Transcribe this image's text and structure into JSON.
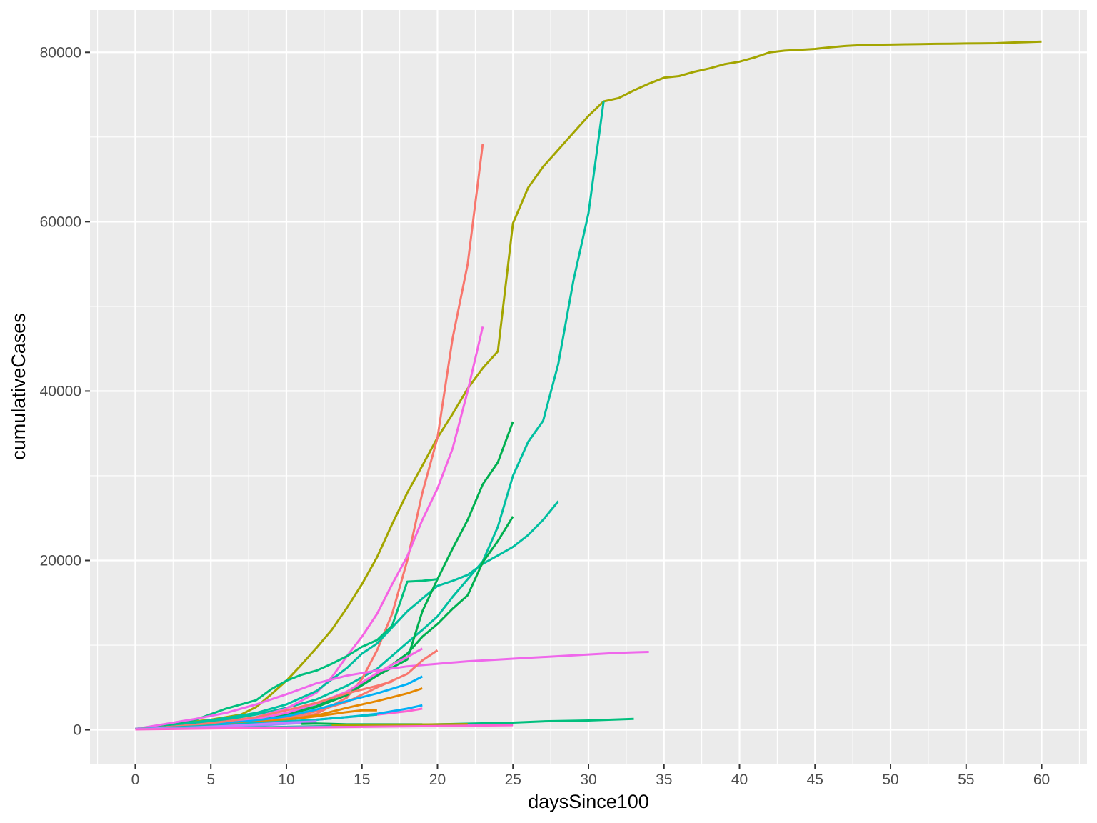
{
  "chart_data": {
    "type": "line",
    "xlabel": "daysSince100",
    "ylabel": "cumulativeCases",
    "xlim": [
      -3,
      63
    ],
    "ylim": [
      -4000,
      85000
    ],
    "x_ticks": [
      0,
      5,
      10,
      15,
      20,
      25,
      30,
      35,
      40,
      45,
      50,
      55,
      60
    ],
    "x_tick_labels": [
      "0",
      "5",
      "10",
      "15",
      "20",
      "25",
      "30",
      "35",
      "40",
      "45",
      "50",
      "55",
      "60"
    ],
    "y_ticks": [
      0,
      20000,
      40000,
      60000,
      80000
    ],
    "y_tick_labels": [
      "0",
      "20000",
      "40000",
      "60000",
      "80000"
    ],
    "grid": true,
    "legend": "none",
    "colors": {
      "panel": "#ebebeb",
      "grid": "#ffffff",
      "tick": "#333333"
    },
    "series": [
      {
        "color": "#a3a500",
        "x": [
          0,
          1,
          2,
          3,
          4,
          5,
          6,
          7,
          8,
          9,
          10,
          11,
          12,
          13,
          14,
          15,
          16,
          17,
          18,
          19,
          20,
          21,
          22,
          23,
          24,
          25,
          26,
          27,
          28,
          29,
          30,
          31,
          32,
          33,
          34,
          35,
          36,
          37,
          38,
          39,
          40,
          41,
          42,
          43,
          44,
          45,
          46,
          47,
          48,
          49,
          50,
          51,
          52,
          53,
          54,
          55,
          56,
          57,
          58,
          59,
          60
        ],
        "y": [
          100,
          300,
          550,
          800,
          1000,
          1200,
          1500,
          1800,
          2700,
          4200,
          5800,
          7700,
          9700,
          11800,
          14400,
          17200,
          20400,
          24300,
          28000,
          31200,
          34500,
          37300,
          40300,
          42700,
          44700,
          59800,
          64000,
          66500,
          68500,
          70500,
          72500,
          74200,
          74600,
          75500,
          76300,
          77000,
          77200,
          77700,
          78100,
          78600,
          78900,
          79400,
          80000,
          80200,
          80300,
          80400,
          80600,
          80750,
          80850,
          80900,
          80920,
          80950,
          80980,
          81000,
          81020,
          81040,
          81060,
          81080,
          81150,
          81200,
          81260
        ]
      },
      {
        "color": "#00bfa0",
        "x": [
          0,
          2,
          4,
          6,
          8,
          10,
          12,
          14,
          16,
          18,
          19,
          20,
          21,
          22,
          23,
          24,
          25,
          26,
          27,
          28,
          29,
          30,
          31
        ],
        "y": [
          100,
          400,
          700,
          1200,
          1800,
          2600,
          3600,
          5200,
          7200,
          10300,
          11800,
          13400,
          15700,
          17800,
          19900,
          24000,
          30000,
          34000,
          36500,
          43200,
          53000,
          61000,
          74200
        ]
      },
      {
        "color": "#f8766d",
        "x": [
          0,
          2,
          4,
          6,
          8,
          10,
          12,
          14,
          15,
          16,
          17,
          18,
          19,
          20,
          21,
          22,
          23
        ],
        "y": [
          100,
          250,
          400,
          600,
          800,
          1200,
          1900,
          3800,
          6000,
          9400,
          13700,
          20000,
          28000,
          34500,
          46200,
          55000,
          69200
        ]
      },
      {
        "color": "#f564e3",
        "x": [
          0,
          2,
          4,
          6,
          8,
          10,
          12,
          13,
          14,
          15,
          16,
          17,
          18,
          19,
          20,
          21,
          22,
          23
        ],
        "y": [
          100,
          300,
          600,
          900,
          1500,
          2500,
          4400,
          6200,
          8700,
          11000,
          13700,
          17200,
          20500,
          24800,
          28500,
          33200,
          40000,
          47600
        ]
      },
      {
        "color": "#00bfa0",
        "x": [
          0,
          2,
          4,
          6,
          8,
          10,
          12,
          14,
          15,
          16,
          17,
          18,
          19,
          20,
          21,
          22,
          23,
          24,
          25,
          26,
          27,
          28
        ],
        "y": [
          100,
          500,
          900,
          1400,
          2000,
          3000,
          4600,
          7300,
          9000,
          10200,
          12100,
          14000,
          15500,
          17000,
          17600,
          18300,
          19600,
          20600,
          21600,
          23000,
          24800,
          27000
        ]
      },
      {
        "color": "#00b050",
        "x": [
          0,
          2,
          4,
          6,
          8,
          10,
          12,
          14,
          16,
          18,
          19,
          20,
          21,
          22,
          23,
          24,
          25
        ],
        "y": [
          100,
          300,
          600,
          900,
          1300,
          1900,
          2800,
          4500,
          6400,
          8300,
          14000,
          17800,
          21400,
          24800,
          29000,
          31600,
          36400
        ]
      },
      {
        "color": "#00b050",
        "x": [
          0,
          2,
          4,
          6,
          8,
          10,
          12,
          14,
          16,
          18,
          19,
          20,
          21,
          22,
          23,
          24,
          25
        ],
        "y": [
          100,
          300,
          500,
          800,
          1200,
          1800,
          2700,
          4100,
          6400,
          9000,
          11000,
          12500,
          14300,
          15900,
          19800,
          22300,
          25200
        ]
      },
      {
        "color": "#00bf7d",
        "x": [
          0,
          2,
          4,
          6,
          8,
          9,
          10,
          11,
          12,
          13,
          14,
          15,
          16,
          17,
          18,
          19,
          20
        ],
        "y": [
          100,
          500,
          1200,
          2500,
          3500,
          4800,
          5800,
          6500,
          7000,
          7800,
          8700,
          9800,
          10600,
          12300,
          17500,
          17600,
          17800
        ]
      },
      {
        "color": "#ef67eb",
        "x": [
          0,
          2,
          4,
          6,
          8,
          10,
          12,
          14,
          16,
          18,
          20,
          22,
          24,
          26,
          28,
          30,
          32,
          34
        ],
        "y": [
          100,
          700,
          1300,
          2000,
          3000,
          4200,
          5500,
          6400,
          7000,
          7500,
          7800,
          8100,
          8300,
          8500,
          8700,
          8900,
          9100,
          9200
        ]
      },
      {
        "color": "#f564e3",
        "x": [
          0,
          2,
          4,
          6,
          8,
          10,
          12,
          14,
          16,
          17,
          18,
          19
        ],
        "y": [
          100,
          300,
          600,
          900,
          1300,
          2000,
          3100,
          4500,
          6700,
          7700,
          8600,
          9600
        ]
      },
      {
        "color": "#f8766d",
        "x": [
          0,
          2,
          4,
          6,
          8,
          10,
          12,
          14,
          16,
          18,
          19,
          20
        ],
        "y": [
          100,
          300,
          500,
          700,
          1000,
          1400,
          2200,
          3300,
          5000,
          6600,
          8200,
          9400
        ]
      },
      {
        "color": "#00b0f6",
        "x": [
          0,
          2,
          4,
          6,
          8,
          10,
          12,
          14,
          16,
          18,
          19
        ],
        "y": [
          100,
          300,
          500,
          800,
          1100,
          1600,
          2400,
          3400,
          4300,
          5400,
          6300
        ]
      },
      {
        "color": "#e58700",
        "x": [
          0,
          2,
          4,
          6,
          8,
          10,
          12,
          14,
          16,
          18,
          19
        ],
        "y": [
          100,
          200,
          400,
          600,
          900,
          1200,
          1700,
          2600,
          3400,
          4300,
          4900
        ]
      },
      {
        "color": "#fd61d1",
        "x": [
          0,
          2,
          4,
          6,
          8,
          10,
          12,
          14,
          16,
          18,
          19
        ],
        "y": [
          100,
          200,
          300,
          500,
          700,
          900,
          1200,
          1500,
          1800,
          2200,
          2500
        ]
      },
      {
        "color": "#00b0f6",
        "x": [
          0,
          2,
          4,
          6,
          8,
          10,
          12,
          14,
          16,
          18,
          19
        ],
        "y": [
          100,
          200,
          300,
          500,
          700,
          900,
          1200,
          1500,
          1900,
          2500,
          2900
        ]
      },
      {
        "color": "#e58700",
        "x": [
          0,
          2,
          4,
          6,
          8,
          10,
          12,
          14,
          15,
          16
        ],
        "y": [
          100,
          250,
          400,
          600,
          900,
          1200,
          1600,
          2100,
          2300,
          2300
        ]
      },
      {
        "color": "#f8766d",
        "x": [
          0,
          2,
          4,
          6,
          8,
          10,
          12,
          14,
          16,
          17
        ],
        "y": [
          100,
          300,
          600,
          1000,
          1500,
          2300,
          3200,
          4300,
          5200,
          5700
        ]
      },
      {
        "color": "#00bfc4",
        "x": [
          0,
          2,
          4,
          6,
          8,
          10,
          12,
          14,
          16
        ],
        "y": [
          100,
          250,
          400,
          600,
          800,
          1000,
          1200,
          1500,
          1800
        ]
      },
      {
        "color": "#9590ff",
        "x": [
          0,
          2,
          4,
          6,
          8,
          10,
          12
        ],
        "y": [
          100,
          150,
          250,
          350,
          500,
          700,
          900
        ]
      },
      {
        "color": "#c77cff",
        "x": [
          0,
          2,
          4,
          6,
          8,
          10,
          12
        ],
        "y": [
          100,
          200,
          300,
          450,
          650,
          850,
          1000
        ]
      },
      {
        "color": "#00bf7d",
        "x": [
          0,
          5,
          10,
          15,
          20,
          25,
          27,
          30,
          33
        ],
        "y": [
          100,
          200,
          350,
          500,
          650,
          850,
          1000,
          1100,
          1300
        ]
      },
      {
        "color": "#00b050",
        "x": [
          11,
          12,
          13,
          14,
          15,
          16,
          17,
          18,
          19
        ],
        "y": [
          700,
          750,
          700,
          650,
          650,
          650,
          650,
          650,
          650
        ]
      },
      {
        "color": "#9590ff",
        "x": [
          0,
          5,
          10,
          15,
          20,
          25
        ],
        "y": [
          100,
          200,
          300,
          400,
          500,
          600
        ]
      },
      {
        "color": "#a3a500",
        "x": [
          13,
          15,
          18,
          20,
          22
        ],
        "y": [
          600,
          600,
          620,
          650,
          680
        ]
      },
      {
        "color": "#fd61d1",
        "x": [
          0,
          5,
          10,
          15,
          20,
          25
        ],
        "y": [
          50,
          150,
          250,
          350,
          450,
          550
        ]
      }
    ]
  }
}
